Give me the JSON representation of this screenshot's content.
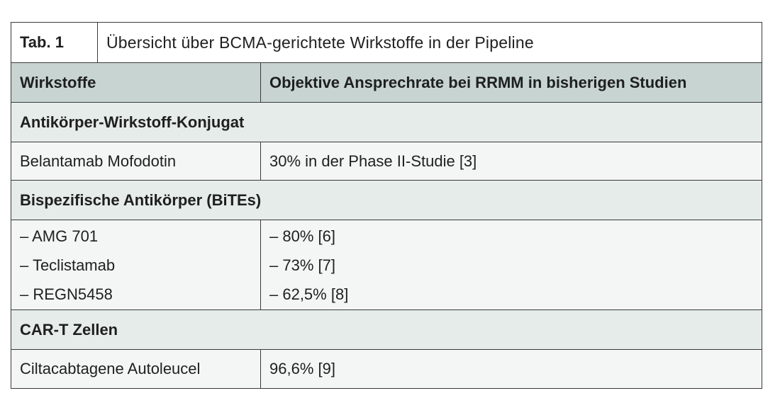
{
  "table": {
    "tab_label": "Tab. 1",
    "title": "Übersicht über BCMA-gerichtete Wirkstoffe in der Pipeline",
    "headers": [
      "Wirkstoffe",
      "Objektive Ansprechrate bei RRMM in bisherigen Studien"
    ],
    "sections": [
      {
        "label": "Antikörper-Wirkstoff-Konjugat",
        "rows": [
          {
            "drug": "Belantamab Mofodotin",
            "rate": "30% in der Phase II-Studie [3]"
          }
        ]
      },
      {
        "label": "Bispezifische Antikörper (BiTEs)",
        "rows": [
          {
            "drug": "– AMG 701",
            "rate": "– 80% [6]"
          },
          {
            "drug": "– Teclistamab",
            "rate": "– 73% [7]"
          },
          {
            "drug": "– REGN5458",
            "rate": "– 62,5% [8]"
          }
        ]
      },
      {
        "label": "CAR-T Zellen",
        "rows": [
          {
            "drug": "Ciltacabtagene Autoleucel",
            "rate": "96,6% [9]"
          }
        ]
      }
    ]
  },
  "colors": {
    "header_bg": "#c7d4d2",
    "section_bg": "#e5ecea",
    "row_bg": "#f3f6f5",
    "border": "#3a3a3a"
  }
}
